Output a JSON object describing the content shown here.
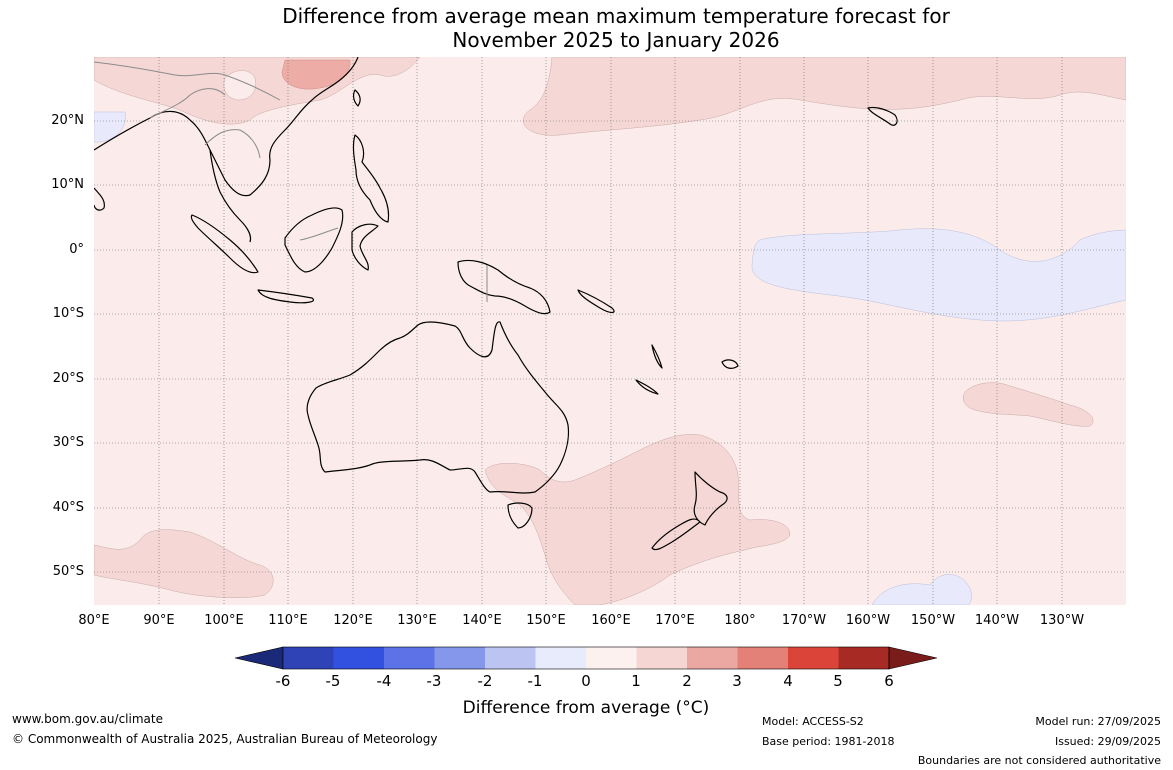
{
  "title": {
    "line1": "Difference from average mean maximum temperature forecast for",
    "line2": "November 2025 to January 2026"
  },
  "map": {
    "lat_labels": [
      "20°N",
      "10°N",
      "0°",
      "10°S",
      "20°S",
      "30°S",
      "40°S",
      "50°S"
    ],
    "lon_labels": [
      "80°E",
      "90°E",
      "100°E",
      "110°E",
      "120°E",
      "130°E",
      "140°E",
      "150°E",
      "160°E",
      "170°E",
      "180°",
      "170°W",
      "160°W",
      "150°W",
      "140°W",
      "130°W"
    ],
    "background_color": "#fbeceb"
  },
  "colorbar": {
    "ticks": [
      "-6",
      "-5",
      "-4",
      "-3",
      "-2",
      "-1",
      "0",
      "1",
      "2",
      "3",
      "4",
      "5",
      "6"
    ],
    "colors": [
      "#1b2a78",
      "#2f42b6",
      "#3351e0",
      "#5c72e6",
      "#8497ea",
      "#bcc4f2",
      "#e8ebfb",
      "#fdf1ef",
      "#f5d6d3",
      "#eba7a1",
      "#e38077",
      "#db4438",
      "#a82a24",
      "#7a1d1a"
    ],
    "title": "Difference from average (°C)"
  },
  "footer": {
    "website": "www.bom.gov.au/climate",
    "copyright": "© Commonwealth of Australia 2025, Australian Bureau of Meteorology",
    "model": "Model: ACCESS-S2",
    "base_period": "Base period: 1981-2018",
    "model_run": "Model run: 27/09/2025",
    "issued": "Issued: 29/09/2025",
    "disclaimer": "Boundaries are not considered authoritative"
  }
}
